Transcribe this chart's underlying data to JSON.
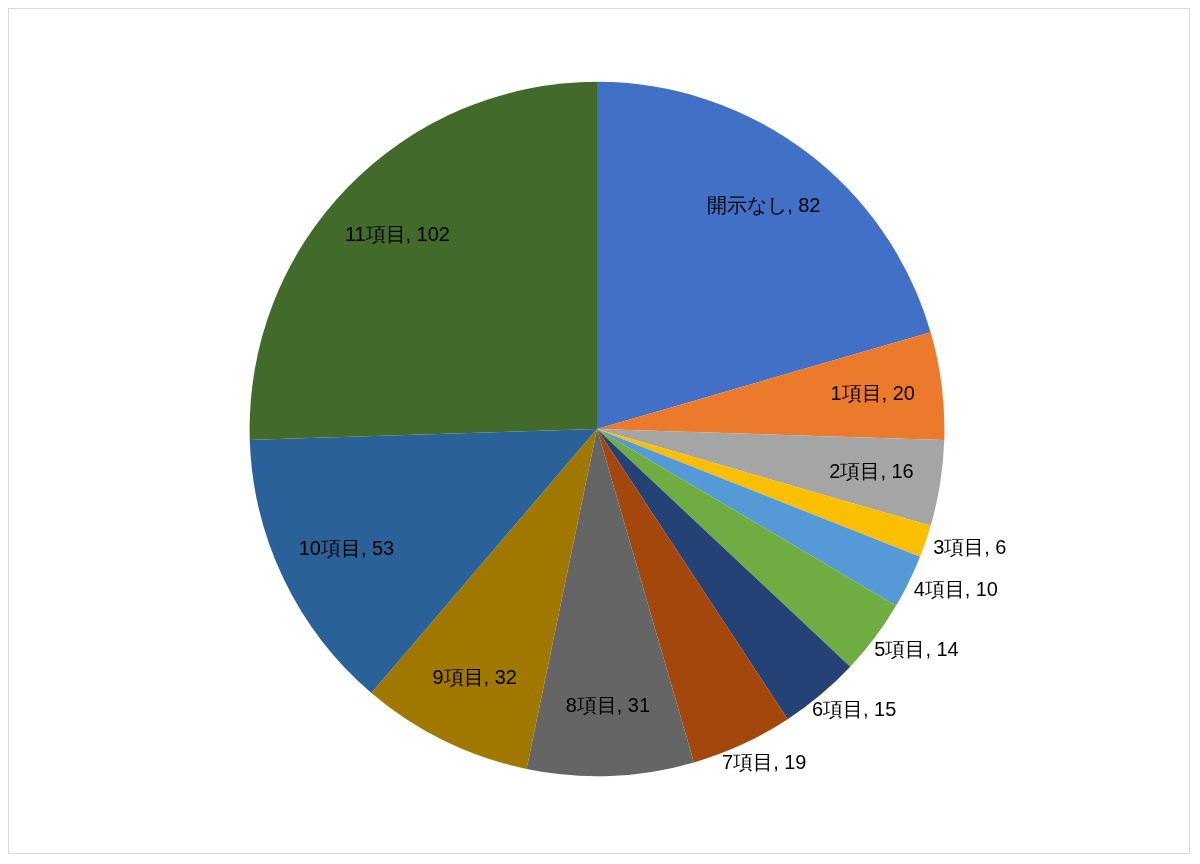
{
  "chart_data": {
    "type": "pie",
    "categories": [
      "開示なし",
      "1項目",
      "2項目",
      "3項目",
      "4項目",
      "5項目",
      "6項目",
      "7項目",
      "8項目",
      "9項目",
      "10項目",
      "11項目"
    ],
    "values": [
      82,
      20,
      16,
      6,
      10,
      14,
      15,
      19,
      31,
      32,
      53,
      102
    ],
    "value_labels": [
      ", 82",
      ", 20",
      ", 16",
      ", 6",
      ", 10",
      ", 14",
      ", 15",
      ", 19",
      ", 31",
      ", 32",
      ", 53",
      ", 102"
    ],
    "colors": [
      "#4170c6",
      "#ec7a2c",
      "#a5a5a5",
      "#f9bf00",
      "#5599d7",
      "#6fad42",
      "#244276",
      "#a4470d",
      "#656565",
      "#a07800",
      "#2b6199",
      "#426a2a"
    ]
  }
}
